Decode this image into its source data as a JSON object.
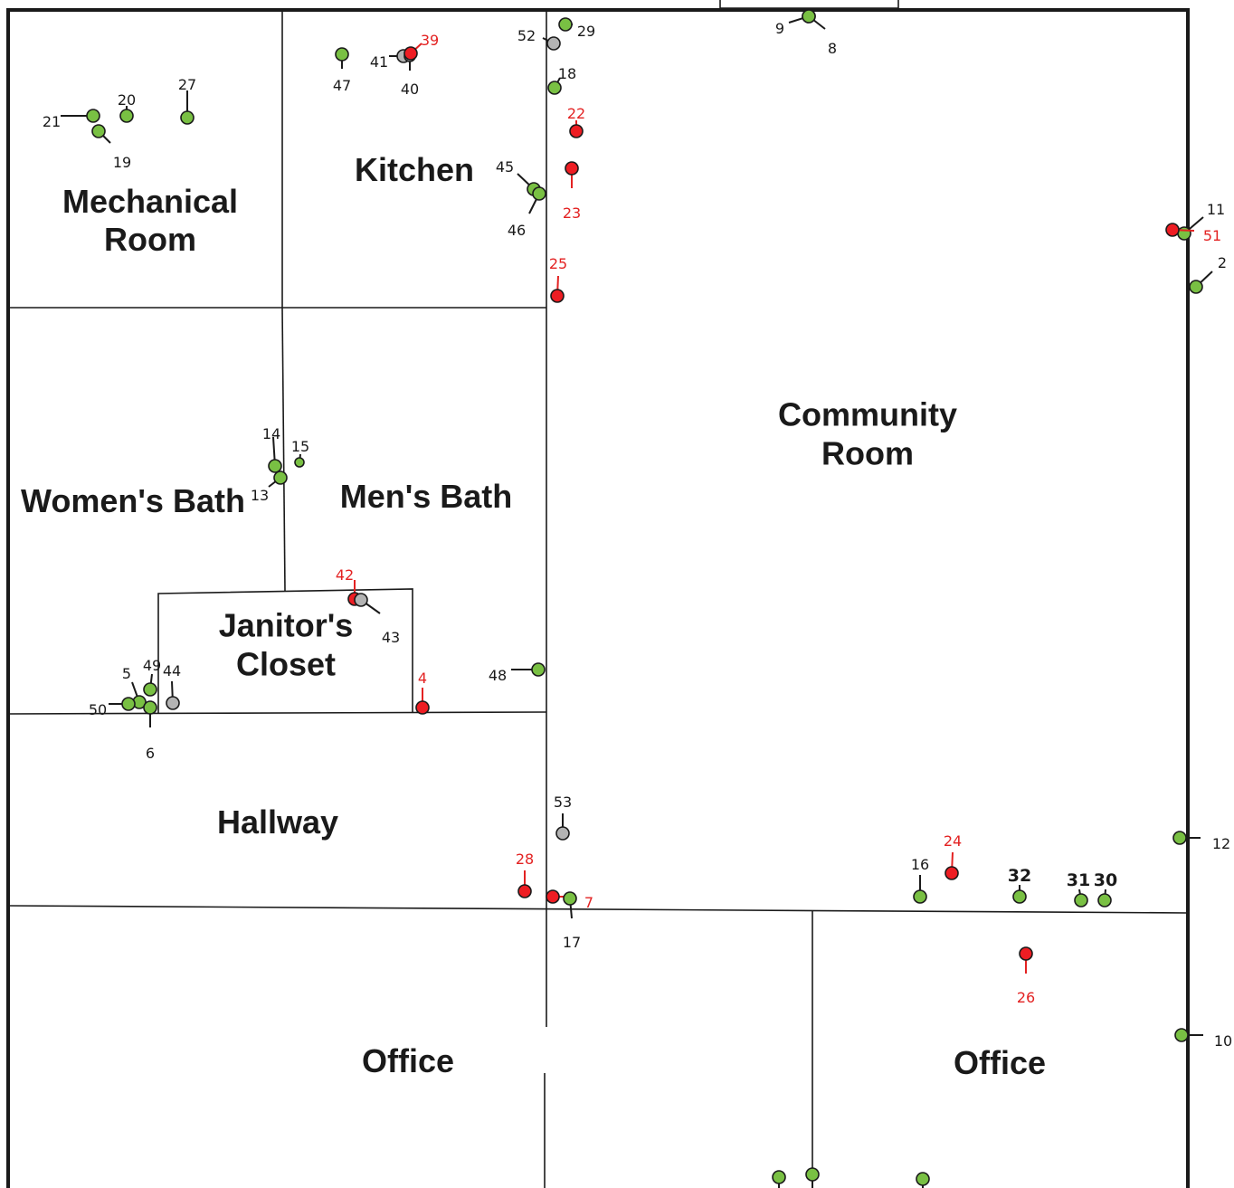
{
  "colors": {
    "green": "#79c043",
    "red": "#ee1d23",
    "gray": "#b3b3b3",
    "label_black": "#1a1a1a",
    "label_red": "#e32222"
  },
  "rooms": [
    {
      "id": "mechanical-room",
      "lines": [
        "Mechanical",
        "Room"
      ]
    },
    {
      "id": "kitchen",
      "lines": [
        "Kitchen"
      ]
    },
    {
      "id": "womens-bath",
      "lines": [
        "Women's Bath"
      ]
    },
    {
      "id": "mens-bath",
      "lines": [
        "Men's Bath"
      ]
    },
    {
      "id": "janitors-closet",
      "lines": [
        "Janitor's",
        "Closet"
      ]
    },
    {
      "id": "hallway",
      "lines": [
        "Hallway"
      ]
    },
    {
      "id": "community-room",
      "lines": [
        "Community",
        "Room"
      ]
    },
    {
      "id": "office-left",
      "lines": [
        "Office"
      ]
    },
    {
      "id": "office-right",
      "lines": [
        "Office"
      ]
    }
  ],
  "points": [
    {
      "label": "21",
      "status": "green"
    },
    {
      "label": "20",
      "status": "green"
    },
    {
      "label": "19",
      "status": "green"
    },
    {
      "label": "27",
      "status": "green"
    },
    {
      "label": "47",
      "status": "green"
    },
    {
      "label": "41",
      "status": "gray"
    },
    {
      "label": "40",
      "status": "gray"
    },
    {
      "label": "39",
      "status": "red"
    },
    {
      "label": "52",
      "status": "gray"
    },
    {
      "label": "29",
      "status": "green"
    },
    {
      "label": "18",
      "status": "green"
    },
    {
      "label": "22",
      "status": "red"
    },
    {
      "label": "23",
      "status": "red"
    },
    {
      "label": "45",
      "status": "green"
    },
    {
      "label": "46",
      "status": "green"
    },
    {
      "label": "25",
      "status": "red"
    },
    {
      "label": "9",
      "status": "green"
    },
    {
      "label": "8",
      "status": "green"
    },
    {
      "label": "11",
      "status": "green"
    },
    {
      "label": "51",
      "status": "red"
    },
    {
      "label": "2",
      "status": "green"
    },
    {
      "label": "14",
      "status": "green"
    },
    {
      "label": "15",
      "status": "green"
    },
    {
      "label": "13",
      "status": "green"
    },
    {
      "label": "42",
      "status": "red"
    },
    {
      "label": "43",
      "status": "gray"
    },
    {
      "label": "4",
      "status": "red"
    },
    {
      "label": "48",
      "status": "green"
    },
    {
      "label": "5",
      "status": "green"
    },
    {
      "label": "49",
      "status": "green"
    },
    {
      "label": "44",
      "status": "gray"
    },
    {
      "label": "50",
      "status": "green"
    },
    {
      "label": "6",
      "status": "green"
    },
    {
      "label": "53",
      "status": "gray"
    },
    {
      "label": "28",
      "status": "red"
    },
    {
      "label": "7",
      "status": "red"
    },
    {
      "label": "17",
      "status": "green"
    },
    {
      "label": "24",
      "status": "red"
    },
    {
      "label": "16",
      "status": "green"
    },
    {
      "label": "32",
      "status": "green"
    },
    {
      "label": "31",
      "status": "green"
    },
    {
      "label": "30",
      "status": "green"
    },
    {
      "label": "12",
      "status": "green"
    },
    {
      "label": "26",
      "status": "red"
    },
    {
      "label": "10",
      "status": "green"
    },
    {
      "label": "",
      "status": "green"
    },
    {
      "label": "",
      "status": "green"
    },
    {
      "label": "",
      "status": "green"
    }
  ]
}
